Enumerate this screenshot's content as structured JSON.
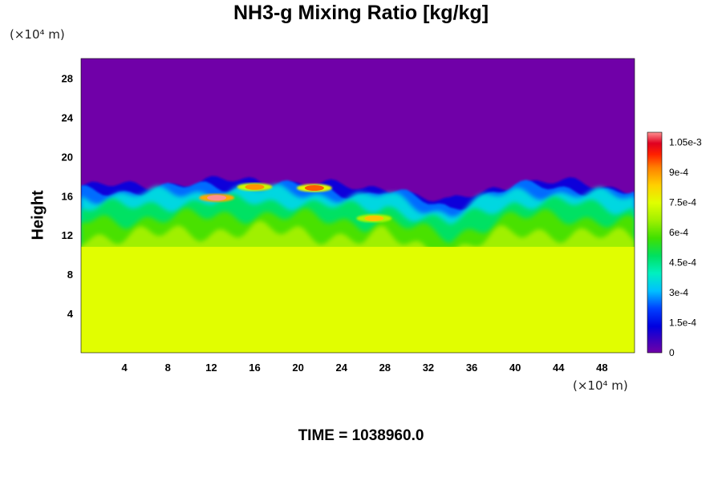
{
  "chart_data": {
    "type": "heatmap",
    "title": "NH3-g Mixing Ratio [kg/kg]",
    "ylabel": "Height",
    "x_unit": "(×10⁴ m)",
    "y_unit": "(×10⁴ m)",
    "x_ticks": [
      "4",
      "8",
      "12",
      "16",
      "20",
      "24",
      "28",
      "32",
      "36",
      "40",
      "44",
      "48"
    ],
    "y_ticks": [
      "4",
      "8",
      "12",
      "16",
      "20",
      "24",
      "28"
    ],
    "xlim": [
      0,
      51
    ],
    "ylim": [
      0,
      30
    ],
    "colorbar": {
      "ticks": [
        "0",
        "1.5e-4",
        "3e-4",
        "4.5e-4",
        "6e-4",
        "7.5e-4",
        "9e-4",
        "1.05e-3"
      ],
      "tick_values": [
        0,
        0.00015,
        0.0003,
        0.00045,
        0.0006,
        0.00075,
        0.0009,
        0.00105
      ],
      "range": [
        0,
        0.0011
      ]
    },
    "fields": {
      "upper_value": 0,
      "lower_value": 0.00075,
      "lower_top_height": 10.8,
      "interface_height_profile": [
        [
          0,
          17.0
        ],
        [
          4,
          17.1
        ],
        [
          8,
          17.4
        ],
        [
          12,
          17.5
        ],
        [
          16,
          17.7
        ],
        [
          20,
          17.5
        ],
        [
          24,
          17.0
        ],
        [
          26,
          16.8
        ],
        [
          28,
          17.2
        ],
        [
          30,
          16.5
        ],
        [
          32,
          15.8
        ],
        [
          34,
          15.3
        ],
        [
          36,
          16.2
        ],
        [
          38,
          17.0
        ],
        [
          40,
          17.5
        ],
        [
          44,
          17.4
        ],
        [
          48,
          17.2
        ],
        [
          51,
          16.8
        ]
      ],
      "high_value_patches": [
        {
          "x": 12.5,
          "y": 15.8,
          "value": 0.0011
        },
        {
          "x": 16,
          "y": 16.9,
          "value": 0.0009
        },
        {
          "x": 21.5,
          "y": 16.8,
          "value": 0.00095
        },
        {
          "x": 27,
          "y": 13.7,
          "value": 0.00085
        }
      ]
    }
  },
  "time_label": "TIME = 1038960.0"
}
